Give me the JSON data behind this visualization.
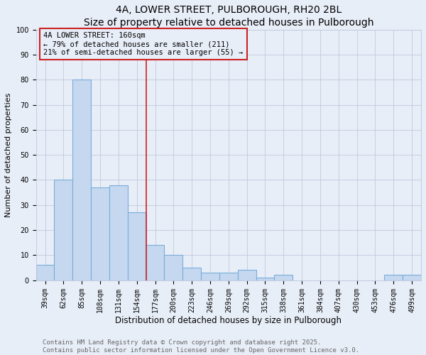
{
  "title": "4A, LOWER STREET, PULBOROUGH, RH20 2BL",
  "subtitle": "Size of property relative to detached houses in Pulborough",
  "xlabel": "Distribution of detached houses by size in Pulborough",
  "ylabel": "Number of detached properties",
  "categories": [
    "39sqm",
    "62sqm",
    "85sqm",
    "108sqm",
    "131sqm",
    "154sqm",
    "177sqm",
    "200sqm",
    "223sqm",
    "246sqm",
    "269sqm",
    "292sqm",
    "315sqm",
    "338sqm",
    "361sqm",
    "384sqm",
    "407sqm",
    "430sqm",
    "453sqm",
    "476sqm",
    "499sqm"
  ],
  "values": [
    6,
    40,
    80,
    37,
    38,
    27,
    14,
    10,
    5,
    3,
    3,
    4,
    1,
    2,
    0,
    0,
    0,
    0,
    0,
    2,
    2
  ],
  "bar_color": "#c5d8f0",
  "bar_edgecolor": "#7aadda",
  "background_color": "#e8eef8",
  "vline_x": 5.5,
  "vline_color": "#cc2222",
  "annotation_text": "4A LOWER STREET: 160sqm\n← 79% of detached houses are smaller (211)\n21% of semi-detached houses are larger (55) →",
  "annotation_box_edgecolor": "#cc2222",
  "annotation_box_facecolor": "#e8eef8",
  "footer_line1": "Contains HM Land Registry data © Crown copyright and database right 2025.",
  "footer_line2": "Contains public sector information licensed under the Open Government Licence v3.0.",
  "ylim": [
    0,
    100
  ],
  "title_fontsize": 10,
  "xlabel_fontsize": 8.5,
  "ylabel_fontsize": 8,
  "tick_fontsize": 7,
  "annotation_fontsize": 7.5,
  "footer_fontsize": 6.5
}
